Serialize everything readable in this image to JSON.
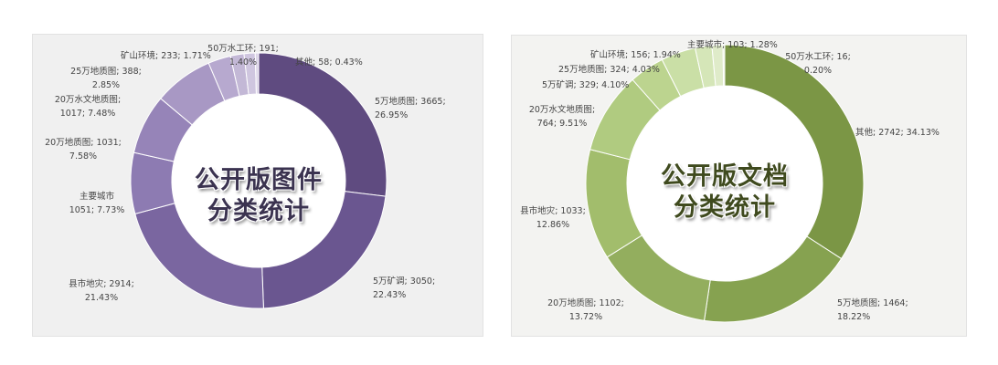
{
  "chart_data": [
    {
      "type": "pie",
      "variant": "donut",
      "title": "公开版图件分类统计",
      "title_lines": [
        "公开版图件",
        "分类统计"
      ],
      "slices": [
        {
          "label": "5万地质图",
          "value": 3665,
          "percent": "26.95%",
          "color": "#5f4b80"
        },
        {
          "label": "5万矿调",
          "value": 3050,
          "percent": "22.43%",
          "color": "#6a5690"
        },
        {
          "label": "县市地灾",
          "value": 2914,
          "percent": "21.43%",
          "color": "#7a66a0"
        },
        {
          "label": "主要城市",
          "value": 1051,
          "percent": "7.73%",
          "color": "#8d7bb2"
        },
        {
          "label": "20万地质图",
          "value": 1031,
          "percent": "7.58%",
          "color": "#9684b8"
        },
        {
          "label": "20万水文地质图",
          "value": 1017,
          "percent": "7.48%",
          "color": "#a898c4"
        },
        {
          "label": "25万地质图",
          "value": 388,
          "percent": "2.85%",
          "color": "#b7a9cf"
        },
        {
          "label": "矿山环境",
          "value": 233,
          "percent": "1.71%",
          "color": "#c3b8d6"
        },
        {
          "label": "50万水工环",
          "value": 191,
          "percent": "1.40%",
          "color": "#cfc6df"
        },
        {
          "label": "其他",
          "value": 58,
          "percent": "0.43%",
          "color": "#dcd5e8"
        }
      ]
    },
    {
      "type": "pie",
      "variant": "donut",
      "title": "公开版文档分类统计",
      "title_lines": [
        "公开版文档",
        "分类统计"
      ],
      "slices": [
        {
          "label": "其他",
          "value": 2742,
          "percent": "34.13%",
          "color": "#7b9645"
        },
        {
          "label": "5万地质图",
          "value": 1464,
          "percent": "18.22%",
          "color": "#86a250"
        },
        {
          "label": "20万地质图",
          "value": 1102,
          "percent": "13.72%",
          "color": "#93ae5e"
        },
        {
          "label": "县市地灾",
          "value": 1033,
          "percent": "12.86%",
          "color": "#a2bd6c"
        },
        {
          "label": "20万水文地质图",
          "value": 764,
          "percent": "9.51%",
          "color": "#b0cb80"
        },
        {
          "label": "5万矿调",
          "value": 329,
          "percent": "4.10%",
          "color": "#bcd48f"
        },
        {
          "label": "25万地质图",
          "value": 324,
          "percent": "4.03%",
          "color": "#cadfa6"
        },
        {
          "label": "矿山环境",
          "value": 156,
          "percent": "1.94%",
          "color": "#d5e6b8"
        },
        {
          "label": "主要城市",
          "value": 103,
          "percent": "1.28%",
          "color": "#dfebc9"
        },
        {
          "label": "50万水工环",
          "value": 16,
          "percent": "0.20%",
          "color": "#e7f0d8"
        }
      ]
    }
  ]
}
